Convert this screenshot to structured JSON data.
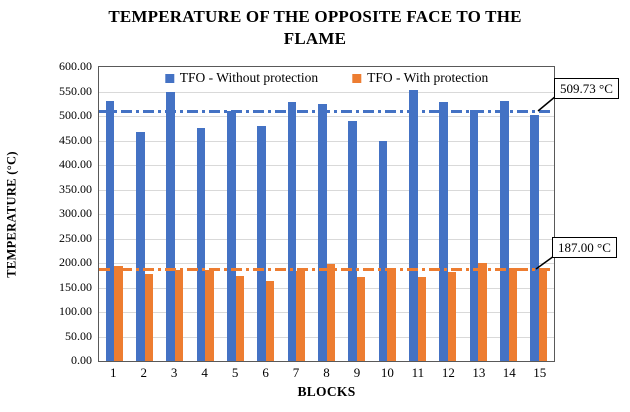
{
  "title": "TEMPERATURE OF THE OPPOSITE FACE TO THE FLAME",
  "chart_data": {
    "type": "bar",
    "title": "TEMPERATURE OF THE OPPOSITE FACE TO THE FLAME",
    "xlabel": "BLOCKS",
    "ylabel": "TEMPERATURE (°C)",
    "ylim": [
      0,
      600
    ],
    "ytick_step": 50,
    "ytick_decimals": 2,
    "grid": true,
    "legend_position": "top-center-inside",
    "categories": [
      "1",
      "2",
      "3",
      "4",
      "5",
      "6",
      "7",
      "8",
      "9",
      "10",
      "11",
      "12",
      "13",
      "14",
      "15"
    ],
    "series": [
      {
        "name": "TFO - Without protection",
        "color": "#4472C4",
        "values": [
          530,
          468,
          549,
          476,
          510,
          480,
          528,
          525,
          490,
          450,
          553,
          528,
          512,
          530,
          503
        ]
      },
      {
        "name": "TFO - With protection",
        "color": "#ED7D31",
        "values": [
          193,
          178,
          186,
          185,
          174,
          163,
          183,
          199,
          172,
          188,
          172,
          182,
          200,
          190,
          189
        ]
      }
    ],
    "reference_lines": [
      {
        "value": 509.73,
        "label": "509.73 °C",
        "color": "#4472C4",
        "style": "dash-dot"
      },
      {
        "value": 187.0,
        "label": "187.00 °C",
        "color": "#ED7D31",
        "style": "dash-dot"
      }
    ]
  },
  "colors": {
    "background": "#FFFFFF",
    "grid": "#D9D9D9",
    "plot_border": "#595959",
    "blue_series": "#4472C4",
    "orange_series": "#ED7D31",
    "text": "#000000"
  }
}
